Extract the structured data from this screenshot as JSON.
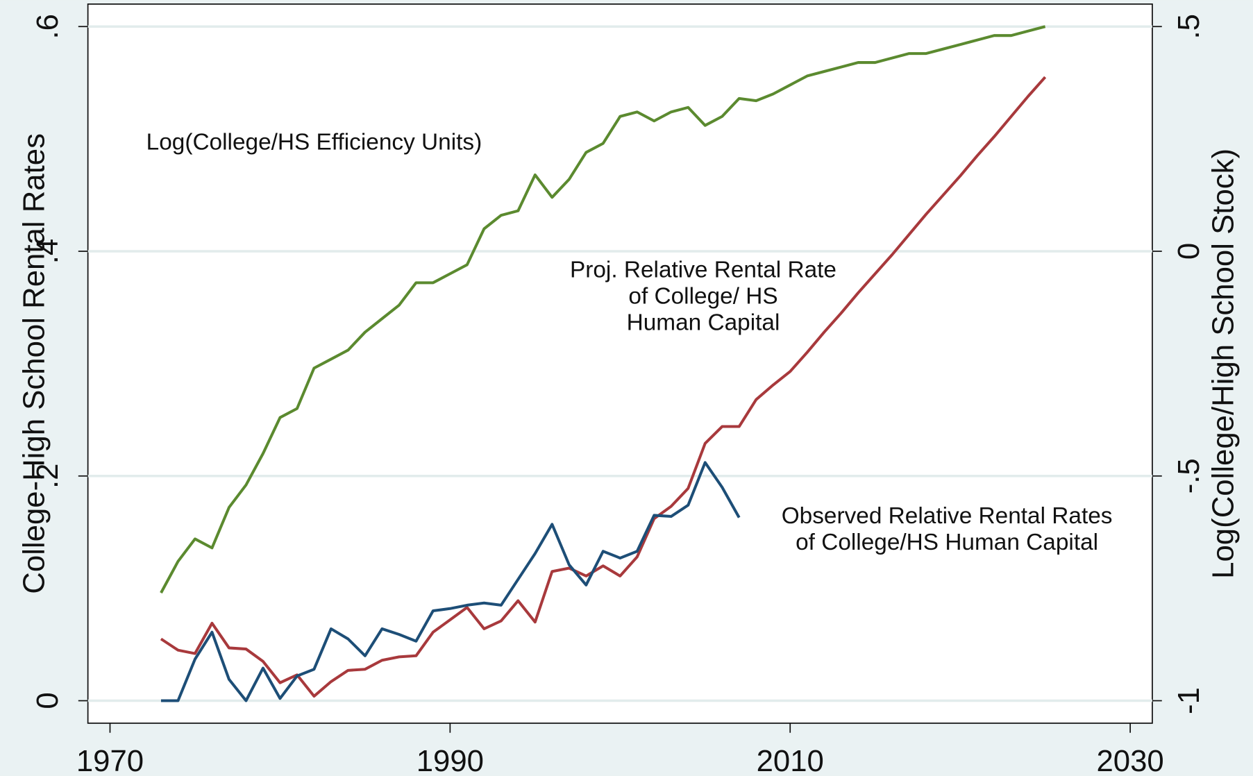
{
  "chart_data": {
    "type": "line",
    "ylabel": "College-High School Rental Rates",
    "y2label": "Log(College/High School Stock)",
    "annotations": [
      [
        "Log(College/HS Efficiency Units)"
      ],
      [
        "Proj. Relative Rental Rate",
        "of College/ HS",
        "Human Capital"
      ],
      [
        "Observed Relative Rental Rates",
        "of College/HS Human Capital"
      ]
    ],
    "x": [
      1973,
      1974,
      1975,
      1976,
      1977,
      1978,
      1979,
      1980,
      1981,
      1982,
      1983,
      1984,
      1985,
      1986,
      1987,
      1988,
      1989,
      1990,
      1991,
      1992,
      1993,
      1994,
      1995,
      1996,
      1997,
      1998,
      1999,
      2000,
      2001,
      2002,
      2003,
      2004,
      2005,
      2006,
      2007,
      2008,
      2009,
      2010,
      2011,
      2012,
      2013,
      2014,
      2015,
      2016,
      2017,
      2018,
      2019,
      2020,
      2021,
      2022,
      2023,
      2024,
      2025
    ],
    "series": [
      {
        "name": "Log(College/HS Efficiency Units)",
        "color": "#5b8a2f",
        "axis": "y2",
        "values": [
          -0.76,
          -0.69,
          -0.64,
          -0.66,
          -0.57,
          -0.52,
          -0.45,
          -0.37,
          -0.35,
          -0.26,
          -0.24,
          -0.22,
          -0.18,
          -0.15,
          -0.12,
          -0.07,
          -0.07,
          -0.05,
          -0.03,
          0.05,
          0.08,
          0.09,
          0.17,
          0.12,
          0.16,
          0.22,
          0.24,
          0.3,
          0.31,
          0.29,
          0.31,
          0.32,
          0.28,
          0.3,
          0.34,
          0.335,
          0.35,
          0.37,
          0.39,
          0.4,
          0.41,
          0.42,
          0.42,
          0.43,
          0.44,
          0.44,
          0.45,
          0.46,
          0.47,
          0.48,
          0.48,
          0.49,
          0.5
        ]
      },
      {
        "name": "Proj. Relative Rental Rate",
        "color": "#a8393c",
        "values": [
          0.055,
          0.045,
          0.042,
          0.069,
          0.047,
          0.046,
          0.035,
          0.016,
          0.023,
          0.004,
          0.017,
          0.027,
          0.028,
          0.036,
          0.039,
          0.04,
          0.061,
          0.072,
          0.083,
          0.064,
          0.071,
          0.089,
          0.07,
          0.115,
          0.118,
          0.111,
          0.12,
          0.111,
          0.128,
          0.162,
          0.173,
          0.189,
          0.229,
          0.244,
          0.244,
          0.268,
          0.281,
          0.293,
          0.31,
          0.328,
          0.345,
          0.363,
          0.38,
          0.397,
          0.415,
          0.433,
          0.45,
          0.467,
          0.485,
          0.502,
          0.52,
          0.538,
          0.555
        ]
      },
      {
        "name": "Observed Relative Rental Rates",
        "color": "#1d4e77",
        "values": [
          0,
          0,
          0.037,
          0.061,
          0.019,
          0,
          0.029,
          0.002,
          0.022,
          0.028,
          0.064,
          0.055,
          0.04,
          0.064,
          0.059,
          0.053,
          0.08,
          0.082,
          0.085,
          0.087,
          0.085,
          0.108,
          0.131,
          0.157,
          0.121,
          0.103,
          0.133,
          0.127,
          0.133,
          0.165,
          0.164,
          0.174,
          0.212,
          0.19,
          0.163,
          null,
          null,
          null,
          null,
          null,
          null,
          null,
          null,
          null,
          null,
          null,
          null,
          null,
          null,
          null,
          null,
          null,
          null
        ]
      }
    ],
    "xlim": [
      1968.7,
      2031.3
    ],
    "xticks": [
      1970,
      1990,
      2010,
      2030
    ],
    "ylim": [
      -0.02,
      0.62
    ],
    "yticks": [
      0,
      {
        "value": 0.2,
        "label": ".2"
      },
      {
        "value": 0.4,
        "label": ".4"
      },
      {
        "value": 0.6,
        "label": ".6"
      }
    ],
    "y2lim": [
      -1.05,
      0.55
    ],
    "y2ticks": [
      -1,
      {
        "value": -0.5,
        "label": "-.5"
      },
      0,
      {
        "value": 0.5,
        "label": ".5"
      }
    ],
    "grid": true
  }
}
